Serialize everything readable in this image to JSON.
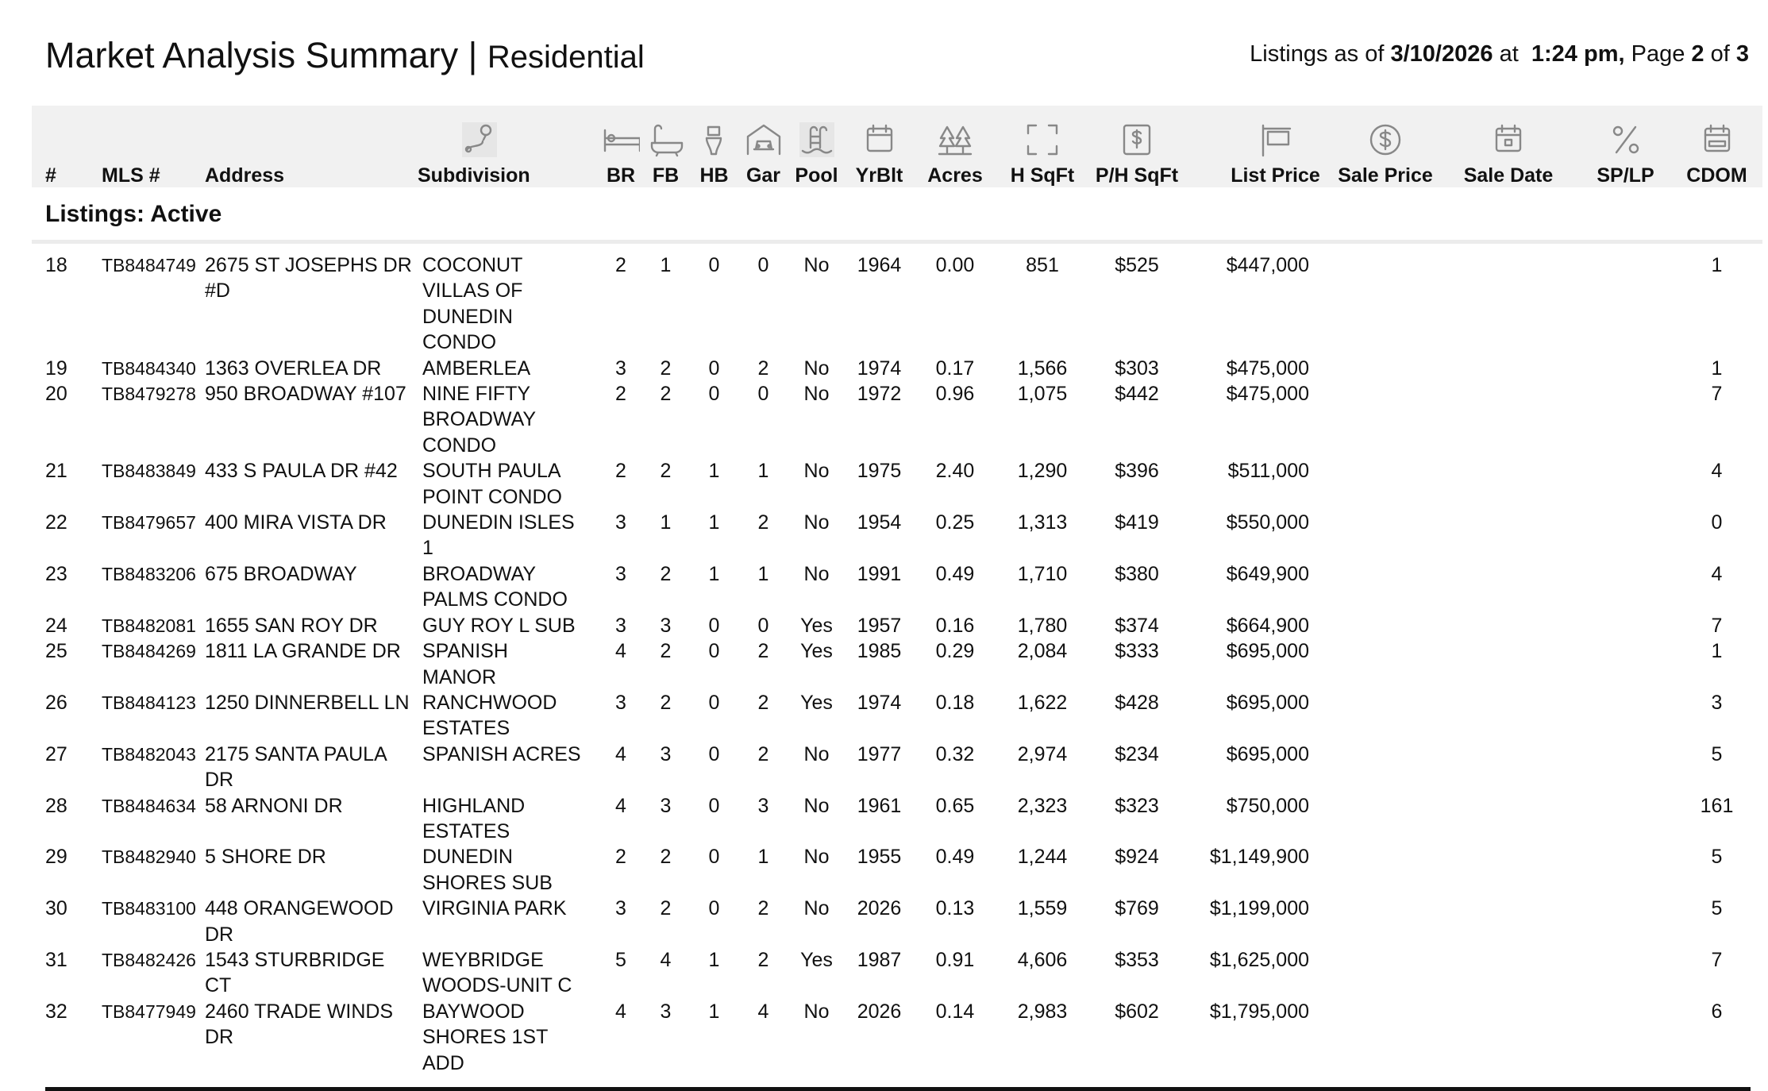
{
  "header": {
    "title": "Market Analysis Summary",
    "separator": "|",
    "subtitle": "Residential",
    "as_of": {
      "prefix": "Listings as of",
      "date": "3/10/2026",
      "at": "at",
      "time": "1:24 pm,",
      "page_word": "Page",
      "page": "2",
      "of": "of",
      "total": "3"
    }
  },
  "table": {
    "columns": [
      "#",
      "MLS #",
      "Address",
      "Subdivision",
      "BR",
      "FB",
      "HB",
      "Gar",
      "Pool",
      "YrBlt",
      "Acres",
      "H SqFt",
      "P/H SqFt",
      "List Price",
      "Sale Price",
      "Sale Date",
      "SP/LP",
      "CDOM"
    ],
    "section": "Listings: Active",
    "rows": [
      [
        "18",
        "TB8484749",
        "2675 ST JOSEPHS DR #D",
        "COCONUT VILLAS OF DUNEDIN CONDO",
        "2",
        "1",
        "0",
        "0",
        "No",
        "1964",
        "0.00",
        "851",
        "$525",
        "$447,000",
        "1"
      ],
      [
        "19",
        "TB8484340",
        "1363 OVERLEA DR",
        "AMBERLEA",
        "3",
        "2",
        "0",
        "2",
        "No",
        "1974",
        "0.17",
        "1,566",
        "$303",
        "$475,000",
        "1"
      ],
      [
        "20",
        "TB8479278",
        "950 BROADWAY #107",
        "NINE FIFTY BROADWAY CONDO",
        "2",
        "2",
        "0",
        "0",
        "No",
        "1972",
        "0.96",
        "1,075",
        "$442",
        "$475,000",
        "7"
      ],
      [
        "21",
        "TB8483849",
        "433 S PAULA DR #42",
        "SOUTH PAULA POINT CONDO",
        "2",
        "2",
        "1",
        "1",
        "No",
        "1975",
        "2.40",
        "1,290",
        "$396",
        "$511,000",
        "4"
      ],
      [
        "22",
        "TB8479657",
        "400 MIRA VISTA DR",
        "DUNEDIN ISLES 1",
        "3",
        "1",
        "1",
        "2",
        "No",
        "1954",
        "0.25",
        "1,313",
        "$419",
        "$550,000",
        "0"
      ],
      [
        "23",
        "TB8483206",
        "675 BROADWAY",
        "BROADWAY PALMS CONDO",
        "3",
        "2",
        "1",
        "1",
        "No",
        "1991",
        "0.49",
        "1,710",
        "$380",
        "$649,900",
        "4"
      ],
      [
        "24",
        "TB8482081",
        "1655 SAN ROY DR",
        "GUY ROY L SUB",
        "3",
        "3",
        "0",
        "0",
        "Yes",
        "1957",
        "0.16",
        "1,780",
        "$374",
        "$664,900",
        "7"
      ],
      [
        "25",
        "TB8484269",
        "1811 LA GRANDE DR",
        "SPANISH MANOR",
        "4",
        "2",
        "0",
        "2",
        "Yes",
        "1985",
        "0.29",
        "2,084",
        "$333",
        "$695,000",
        "1"
      ],
      [
        "26",
        "TB8484123",
        "1250 DINNERBELL LN",
        "RANCHWOOD ESTATES",
        "3",
        "2",
        "0",
        "2",
        "Yes",
        "1974",
        "0.18",
        "1,622",
        "$428",
        "$695,000",
        "3"
      ],
      [
        "27",
        "TB8482043",
        "2175 SANTA PAULA DR",
        "SPANISH ACRES",
        "4",
        "3",
        "0",
        "2",
        "No",
        "1977",
        "0.32",
        "2,974",
        "$234",
        "$695,000",
        "5"
      ],
      [
        "28",
        "TB8484634",
        "58 ARNONI DR",
        "HIGHLAND ESTATES",
        "4",
        "3",
        "0",
        "3",
        "No",
        "1961",
        "0.65",
        "2,323",
        "$323",
        "$750,000",
        "161"
      ],
      [
        "29",
        "TB8482940",
        "5 SHORE DR",
        "DUNEDIN SHORES SUB",
        "2",
        "2",
        "0",
        "1",
        "No",
        "1955",
        "0.49",
        "1,244",
        "$924",
        "$1,149,900",
        "5"
      ],
      [
        "30",
        "TB8483100",
        "448 ORANGEWOOD DR",
        "VIRGINIA PARK",
        "3",
        "2",
        "0",
        "2",
        "No",
        "2026",
        "0.13",
        "1,559",
        "$769",
        "$1,199,000",
        "5"
      ],
      [
        "31",
        "TB8482426",
        "1543 STURBRIDGE CT",
        "WEYBRIDGE WOODS-UNIT C",
        "5",
        "4",
        "1",
        "2",
        "Yes",
        "1987",
        "0.91",
        "4,606",
        "$353",
        "$1,625,000",
        "7"
      ],
      [
        "32",
        "TB8477949",
        "2460 TRADE WINDS DR",
        "BAYWOOD SHORES 1ST ADD",
        "4",
        "3",
        "1",
        "4",
        "No",
        "2026",
        "0.14",
        "2,983",
        "$602",
        "$1,795,000",
        "6"
      ]
    ]
  }
}
